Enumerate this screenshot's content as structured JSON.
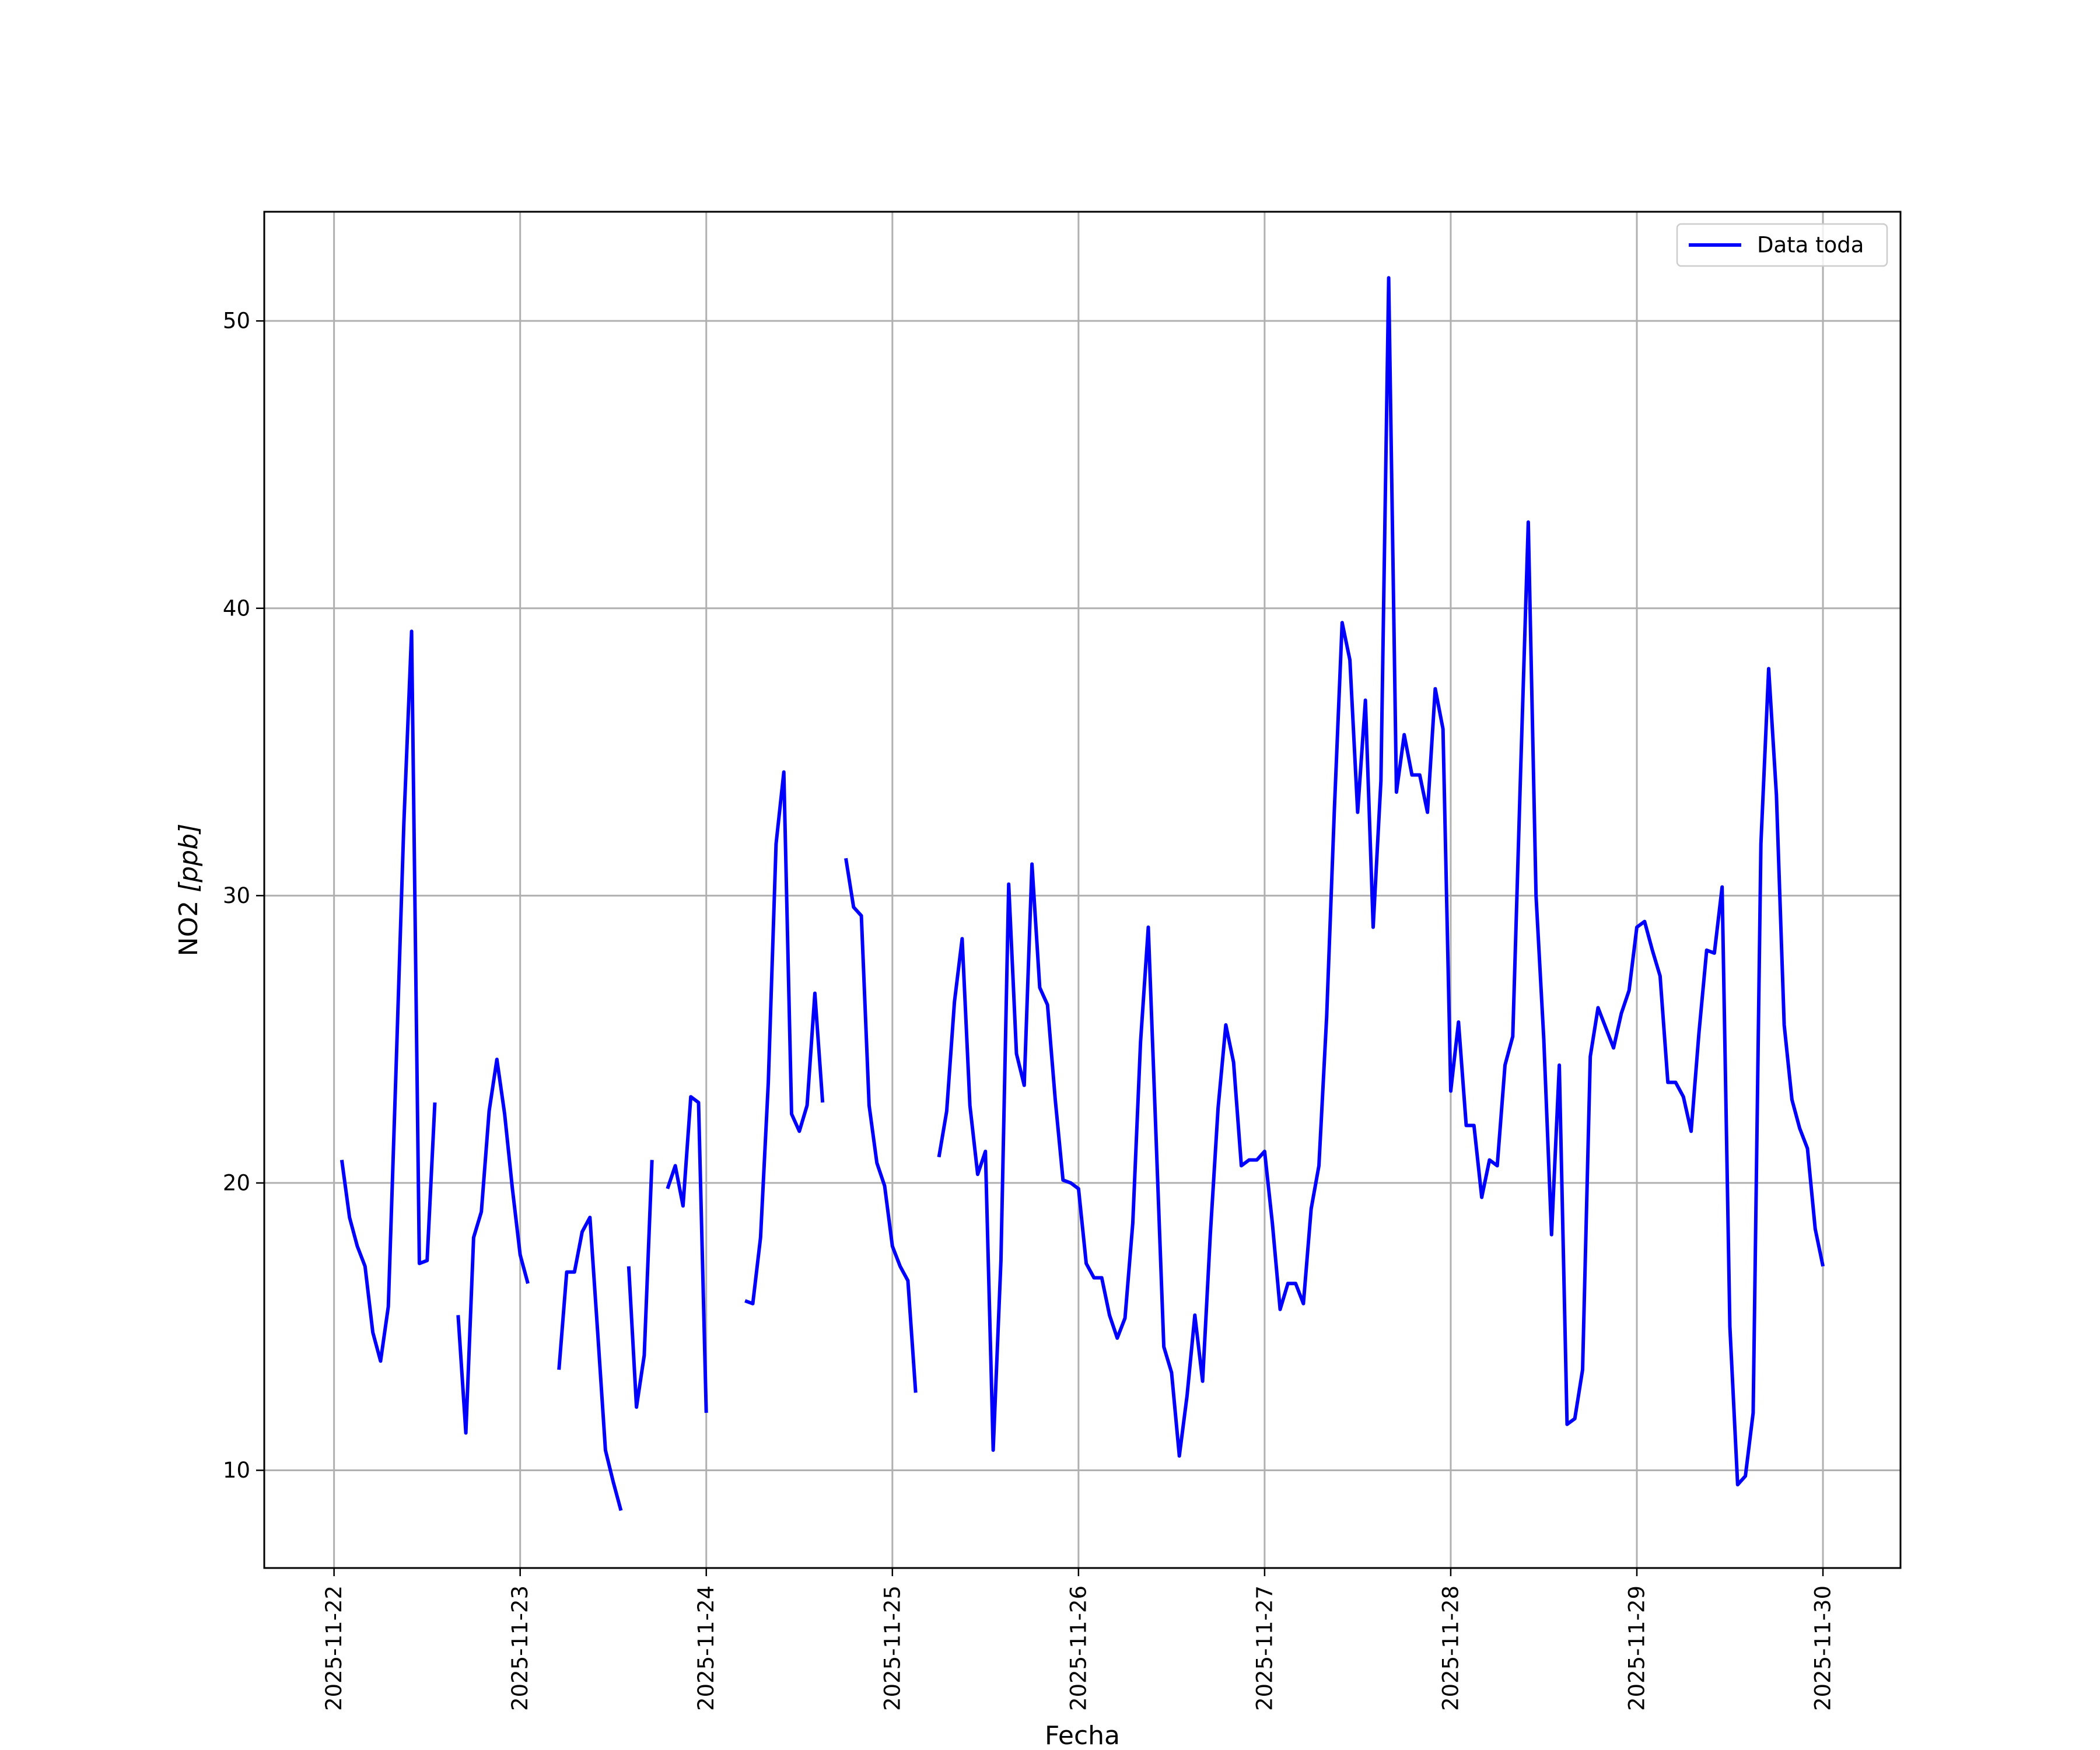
{
  "chart_data": {
    "type": "line",
    "xlabel": "Fecha",
    "ylabel_text": "NO2 ",
    "ylabel_unit": "[ppb]",
    "xlim": [
      "2025-11-21T15:00",
      "2025-11-30T10:00"
    ],
    "ylim": [
      6.6,
      53.8
    ],
    "grid": true,
    "legend_position": "top-right",
    "x_ticks": [
      "2025-11-22",
      "2025-11-23",
      "2025-11-24",
      "2025-11-25",
      "2025-11-26",
      "2025-11-27",
      "2025-11-28",
      "2025-11-29",
      "2025-11-30"
    ],
    "y_ticks": [
      10,
      20,
      30,
      40,
      50
    ],
    "series": [
      {
        "name": "Data toda",
        "color": "#0000ff",
        "points": [
          [
            "2025-11-22T01:00",
            20.8
          ],
          [
            "2025-11-22T02:00",
            18.8
          ],
          [
            "2025-11-22T03:00",
            17.8
          ],
          [
            "2025-11-22T04:00",
            17.1
          ],
          [
            "2025-11-22T05:00",
            14.8
          ],
          [
            "2025-11-22T06:00",
            13.8
          ],
          [
            "2025-11-22T07:00",
            15.7
          ],
          [
            "2025-11-22T08:00",
            24.0
          ],
          [
            "2025-11-22T09:00",
            32.5
          ],
          [
            "2025-11-22T10:00",
            39.2
          ],
          [
            "2025-11-22T11:00",
            17.2
          ],
          [
            "2025-11-22T12:00",
            17.3
          ],
          [
            "2025-11-22T13:00",
            22.8
          ],
          null,
          [
            "2025-11-22T16:00",
            15.4
          ],
          [
            "2025-11-22T17:00",
            11.3
          ],
          [
            "2025-11-22T18:00",
            18.1
          ],
          [
            "2025-11-22T19:00",
            19.0
          ],
          [
            "2025-11-22T20:00",
            22.5
          ],
          [
            "2025-11-22T21:00",
            24.3
          ],
          [
            "2025-11-22T22:00",
            22.4
          ],
          [
            "2025-11-22T23:00",
            19.8
          ],
          [
            "2025-11-23T00:00",
            17.5
          ],
          [
            "2025-11-23T01:00",
            16.5
          ],
          null,
          [
            "2025-11-23T05:00",
            13.5
          ],
          [
            "2025-11-23T06:00",
            16.9
          ],
          [
            "2025-11-23T07:00",
            16.9
          ],
          [
            "2025-11-23T08:00",
            18.3
          ],
          [
            "2025-11-23T09:00",
            18.8
          ],
          [
            "2025-11-23T10:00",
            14.8
          ],
          [
            "2025-11-23T11:00",
            10.7
          ],
          [
            "2025-11-23T12:00",
            9.6
          ],
          [
            "2025-11-23T13:00",
            8.6
          ],
          null,
          [
            "2025-11-23T14:00",
            17.1
          ],
          [
            "2025-11-23T15:00",
            12.2
          ],
          [
            "2025-11-23T16:00",
            14.0
          ],
          [
            "2025-11-23T17:00",
            20.8
          ],
          null,
          [
            "2025-11-23T19:00",
            19.8
          ],
          [
            "2025-11-23T20:00",
            20.6
          ],
          [
            "2025-11-23T21:00",
            19.2
          ],
          [
            "2025-11-23T22:00",
            23.0
          ],
          [
            "2025-11-23T23:00",
            22.8
          ],
          [
            "2025-11-24T00:00",
            12.0
          ],
          null,
          [
            "2025-11-24T05:00",
            15.9
          ],
          [
            "2025-11-24T06:00",
            15.8
          ],
          [
            "2025-11-24T07:00",
            18.1
          ],
          [
            "2025-11-24T08:00",
            23.5
          ],
          [
            "2025-11-24T09:00",
            31.8
          ],
          [
            "2025-11-24T10:00",
            34.3
          ],
          [
            "2025-11-24T11:00",
            22.4
          ],
          [
            "2025-11-24T12:00",
            21.8
          ],
          [
            "2025-11-24T13:00",
            22.7
          ],
          [
            "2025-11-24T14:00",
            26.6
          ],
          [
            "2025-11-24T15:00",
            22.8
          ],
          null,
          [
            "2025-11-24T18:00",
            31.3
          ],
          [
            "2025-11-24T19:00",
            29.6
          ],
          [
            "2025-11-24T20:00",
            29.3
          ],
          [
            "2025-11-24T21:00",
            22.7
          ],
          [
            "2025-11-24T22:00",
            20.7
          ],
          [
            "2025-11-24T23:00",
            19.9
          ],
          [
            "2025-11-25T00:00",
            17.8
          ],
          [
            "2025-11-25T01:00",
            17.1
          ],
          [
            "2025-11-25T02:00",
            16.6
          ],
          [
            "2025-11-25T03:00",
            12.7
          ],
          null,
          [
            "2025-11-25T06:00",
            20.9
          ],
          [
            "2025-11-25T07:00",
            22.5
          ],
          [
            "2025-11-25T08:00",
            26.3
          ],
          [
            "2025-11-25T09:00",
            28.5
          ],
          [
            "2025-11-25T10:00",
            22.7
          ],
          [
            "2025-11-25T11:00",
            20.3
          ],
          [
            "2025-11-25T12:00",
            21.1
          ],
          [
            "2025-11-25T13:00",
            10.7
          ],
          [
            "2025-11-25T14:00",
            17.3
          ],
          [
            "2025-11-25T15:00",
            30.4
          ],
          [
            "2025-11-25T16:00",
            24.5
          ],
          [
            "2025-11-25T17:00",
            23.4
          ],
          [
            "2025-11-25T18:00",
            31.1
          ],
          [
            "2025-11-25T19:00",
            26.8
          ],
          [
            "2025-11-25T20:00",
            26.2
          ],
          [
            "2025-11-25T21:00",
            22.9
          ],
          [
            "2025-11-25T22:00",
            20.1
          ],
          [
            "2025-11-25T23:00",
            20.0
          ],
          [
            "2025-11-26T00:00",
            19.8
          ],
          [
            "2025-11-26T01:00",
            17.2
          ],
          [
            "2025-11-26T02:00",
            16.7
          ],
          [
            "2025-11-26T03:00",
            16.7
          ],
          [
            "2025-11-26T04:00",
            15.4
          ],
          [
            "2025-11-26T05:00",
            14.6
          ],
          [
            "2025-11-26T06:00",
            15.3
          ],
          [
            "2025-11-26T07:00",
            18.6
          ],
          [
            "2025-11-26T08:00",
            24.9
          ],
          [
            "2025-11-26T09:00",
            28.9
          ],
          [
            "2025-11-26T10:00",
            21.6
          ],
          [
            "2025-11-26T11:00",
            14.3
          ],
          [
            "2025-11-26T12:00",
            13.4
          ],
          [
            "2025-11-26T13:00",
            10.5
          ],
          [
            "2025-11-26T14:00",
            12.6
          ],
          [
            "2025-11-26T15:00",
            15.4
          ],
          [
            "2025-11-26T16:00",
            13.1
          ],
          [
            "2025-11-26T17:00",
            18.2
          ],
          [
            "2025-11-26T18:00",
            22.6
          ],
          [
            "2025-11-26T19:00",
            25.5
          ],
          [
            "2025-11-26T20:00",
            24.2
          ],
          [
            "2025-11-26T21:00",
            20.6
          ],
          [
            "2025-11-26T22:00",
            20.8
          ],
          [
            "2025-11-26T23:00",
            20.8
          ],
          [
            "2025-11-27T00:00",
            21.1
          ],
          [
            "2025-11-27T01:00",
            18.6
          ],
          [
            "2025-11-27T02:00",
            15.6
          ],
          [
            "2025-11-27T03:00",
            16.5
          ],
          [
            "2025-11-27T04:00",
            16.5
          ],
          [
            "2025-11-27T05:00",
            15.8
          ],
          [
            "2025-11-27T06:00",
            19.1
          ],
          [
            "2025-11-27T07:00",
            20.6
          ],
          [
            "2025-11-27T08:00",
            25.8
          ],
          [
            "2025-11-27T09:00",
            33.0
          ],
          [
            "2025-11-27T10:00",
            39.5
          ],
          [
            "2025-11-27T11:00",
            38.2
          ],
          [
            "2025-11-27T12:00",
            32.9
          ],
          [
            "2025-11-27T13:00",
            36.8
          ],
          [
            "2025-11-27T14:00",
            28.9
          ],
          [
            "2025-11-27T15:00",
            34.0
          ],
          [
            "2025-11-27T16:00",
            51.5
          ],
          [
            "2025-11-27T17:00",
            33.6
          ],
          [
            "2025-11-27T18:00",
            35.6
          ],
          [
            "2025-11-27T19:00",
            34.2
          ],
          [
            "2025-11-27T20:00",
            34.2
          ],
          [
            "2025-11-27T21:00",
            32.9
          ],
          [
            "2025-11-27T22:00",
            37.2
          ],
          [
            "2025-11-27T23:00",
            35.8
          ],
          [
            "2025-11-28T00:00",
            23.2
          ],
          [
            "2025-11-28T01:00",
            25.6
          ],
          [
            "2025-11-28T02:00",
            22.0
          ],
          [
            "2025-11-28T03:00",
            22.0
          ],
          [
            "2025-11-28T04:00",
            19.5
          ],
          [
            "2025-11-28T05:00",
            20.8
          ],
          [
            "2025-11-28T06:00",
            20.6
          ],
          [
            "2025-11-28T07:00",
            24.1
          ],
          [
            "2025-11-28T08:00",
            25.1
          ],
          [
            "2025-11-28T09:00",
            34.2
          ],
          [
            "2025-11-28T10:00",
            43.0
          ],
          [
            "2025-11-28T11:00",
            30.0
          ],
          [
            "2025-11-28T12:00",
            25.0
          ],
          [
            "2025-11-28T13:00",
            18.2
          ],
          [
            "2025-11-28T14:00",
            24.1
          ],
          [
            "2025-11-28T15:00",
            11.6
          ],
          [
            "2025-11-28T16:00",
            11.8
          ],
          [
            "2025-11-28T17:00",
            13.5
          ],
          [
            "2025-11-28T18:00",
            24.4
          ],
          [
            "2025-11-28T19:00",
            26.1
          ],
          [
            "2025-11-28T20:00",
            25.4
          ],
          [
            "2025-11-28T21:00",
            24.7
          ],
          [
            "2025-11-28T22:00",
            25.9
          ],
          [
            "2025-11-28T23:00",
            26.7
          ],
          [
            "2025-11-29T00:00",
            28.9
          ],
          [
            "2025-11-29T01:00",
            29.1
          ],
          [
            "2025-11-29T02:00",
            28.1
          ],
          [
            "2025-11-29T03:00",
            27.2
          ],
          [
            "2025-11-29T04:00",
            23.5
          ],
          [
            "2025-11-29T05:00",
            23.5
          ],
          [
            "2025-11-29T06:00",
            23.0
          ],
          [
            "2025-11-29T07:00",
            21.8
          ],
          [
            "2025-11-29T08:00",
            25.2
          ],
          [
            "2025-11-29T09:00",
            28.1
          ],
          [
            "2025-11-29T10:00",
            28.0
          ],
          [
            "2025-11-29T11:00",
            30.3
          ],
          [
            "2025-11-29T12:00",
            15.0
          ],
          [
            "2025-11-29T13:00",
            9.5
          ],
          [
            "2025-11-29T14:00",
            9.8
          ],
          [
            "2025-11-29T15:00",
            12.0
          ],
          [
            "2025-11-29T16:00",
            31.8
          ],
          [
            "2025-11-29T17:00",
            37.9
          ],
          [
            "2025-11-29T18:00",
            33.5
          ],
          [
            "2025-11-29T19:00",
            25.5
          ],
          [
            "2025-11-29T20:00",
            22.9
          ],
          [
            "2025-11-29T21:00",
            21.9
          ],
          [
            "2025-11-29T22:00",
            21.2
          ],
          [
            "2025-11-29T23:00",
            18.4
          ],
          [
            "2025-11-30T00:00",
            17.1
          ]
        ]
      }
    ]
  }
}
